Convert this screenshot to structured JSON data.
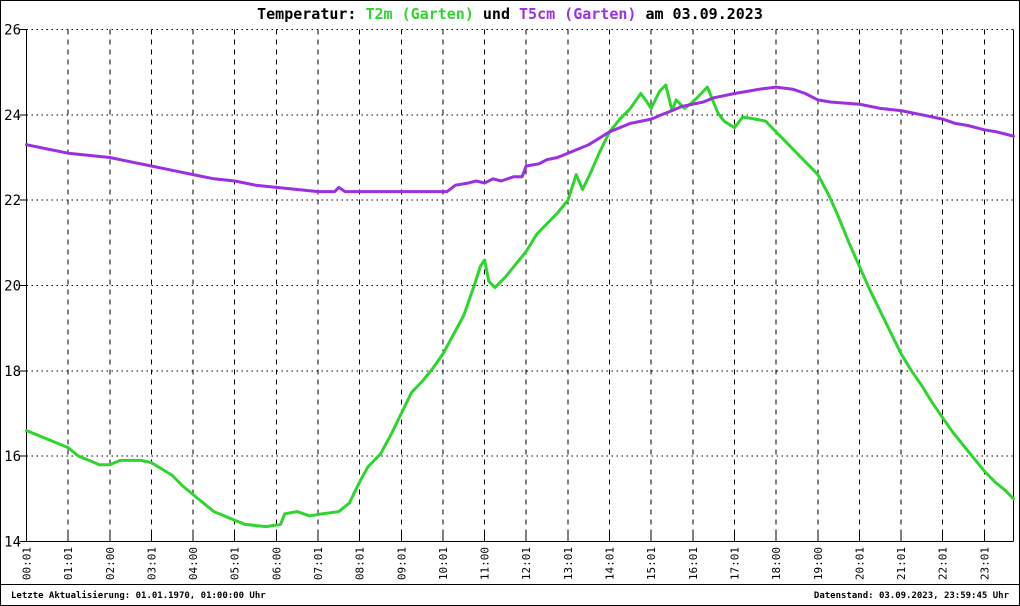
{
  "title": {
    "segments": [
      {
        "text": "Temperatur: ",
        "color_key": "black"
      },
      {
        "text": "T2m (Garten)",
        "color_key": "green"
      },
      {
        "text": " und ",
        "color_key": "black"
      },
      {
        "text": "T5cm (Garten)",
        "color_key": "purple"
      },
      {
        "text": " am 03.09.2023",
        "color_key": "black"
      }
    ],
    "full": "Temperatur: T2m (Garten) und T5cm (Garten) am 03.09.2023"
  },
  "footer": {
    "left": "Letzte Aktualisierung: 01.01.1970, 01:00:00 Uhr",
    "right": "Datenstand: 03.09.2023, 23:59:45 Uhr"
  },
  "colors": {
    "t2m_line": "#2ed52e",
    "t5cm_line": "#9b30e0",
    "axis": "#000000",
    "background": "#ffffff"
  },
  "chart_data": {
    "type": "line",
    "title": "Temperatur: T2m (Garten) und T5cm (Garten) am 03.09.2023",
    "xlabel": "",
    "ylabel": "",
    "ylim": [
      14,
      26
    ],
    "y_ticks": [
      14,
      16,
      18,
      20,
      22,
      24,
      26
    ],
    "xmax_hours": 23.7,
    "grid": "horizontal dotted, vertical dashed",
    "legend_position": "in title (colored text)",
    "x_tick_labels": [
      "00:01",
      "01:01",
      "02:00",
      "03:01",
      "04:00",
      "05:01",
      "06:00",
      "07:01",
      "08:01",
      "09:01",
      "10:01",
      "11:00",
      "12:01",
      "13:01",
      "14:01",
      "15:01",
      "16:01",
      "17:01",
      "18:00",
      "19:00",
      "20:01",
      "21:01",
      "22:01",
      "23:01"
    ],
    "series": [
      {
        "name": "T2m (Garten)",
        "color": "#2ed52e",
        "points": [
          [
            0,
            16.6
          ],
          [
            0.25,
            16.5
          ],
          [
            0.5,
            16.4
          ],
          [
            0.75,
            16.3
          ],
          [
            1,
            16.2
          ],
          [
            1.25,
            16.0
          ],
          [
            1.5,
            15.9
          ],
          [
            1.75,
            15.8
          ],
          [
            2,
            15.8
          ],
          [
            2.25,
            15.9
          ],
          [
            2.75,
            15.9
          ],
          [
            3,
            15.85
          ],
          [
            3.25,
            15.7
          ],
          [
            3.5,
            15.55
          ],
          [
            3.75,
            15.3
          ],
          [
            4,
            15.1
          ],
          [
            4.25,
            14.9
          ],
          [
            4.5,
            14.7
          ],
          [
            4.75,
            14.6
          ],
          [
            5,
            14.5
          ],
          [
            5.25,
            14.4
          ],
          [
            5.75,
            14.35
          ],
          [
            6.1,
            14.4
          ],
          [
            6.2,
            14.65
          ],
          [
            6.5,
            14.7
          ],
          [
            6.8,
            14.6
          ],
          [
            7.1,
            14.65
          ],
          [
            7.5,
            14.7
          ],
          [
            7.75,
            14.9
          ],
          [
            8,
            15.4
          ],
          [
            8.2,
            15.75
          ],
          [
            8.5,
            16.05
          ],
          [
            8.75,
            16.5
          ],
          [
            9,
            17.0
          ],
          [
            9.25,
            17.5
          ],
          [
            9.5,
            17.75
          ],
          [
            9.75,
            18.05
          ],
          [
            10,
            18.4
          ],
          [
            10.25,
            18.85
          ],
          [
            10.5,
            19.3
          ],
          [
            10.75,
            20.0
          ],
          [
            10.9,
            20.45
          ],
          [
            11,
            20.6
          ],
          [
            11.1,
            20.1
          ],
          [
            11.25,
            19.95
          ],
          [
            11.5,
            20.2
          ],
          [
            11.75,
            20.5
          ],
          [
            12,
            20.8
          ],
          [
            12.25,
            21.2
          ],
          [
            12.5,
            21.45
          ],
          [
            12.75,
            21.7
          ],
          [
            13,
            22.0
          ],
          [
            13.2,
            22.6
          ],
          [
            13.35,
            22.25
          ],
          [
            13.55,
            22.65
          ],
          [
            13.75,
            23.1
          ],
          [
            14,
            23.6
          ],
          [
            14.25,
            23.9
          ],
          [
            14.5,
            24.15
          ],
          [
            14.75,
            24.5
          ],
          [
            14.9,
            24.3
          ],
          [
            15,
            24.15
          ],
          [
            15.2,
            24.55
          ],
          [
            15.35,
            24.7
          ],
          [
            15.5,
            24.1
          ],
          [
            15.6,
            24.35
          ],
          [
            15.8,
            24.15
          ],
          [
            16,
            24.3
          ],
          [
            16.2,
            24.5
          ],
          [
            16.35,
            24.65
          ],
          [
            16.6,
            24.05
          ],
          [
            16.75,
            23.85
          ],
          [
            17,
            23.7
          ],
          [
            17.2,
            23.95
          ],
          [
            17.5,
            23.9
          ],
          [
            17.75,
            23.85
          ],
          [
            18,
            23.6
          ],
          [
            18.25,
            23.35
          ],
          [
            18.5,
            23.1
          ],
          [
            18.75,
            22.85
          ],
          [
            19,
            22.6
          ],
          [
            19.25,
            22.15
          ],
          [
            19.5,
            21.6
          ],
          [
            19.75,
            21.0
          ],
          [
            20,
            20.45
          ],
          [
            20.25,
            19.9
          ],
          [
            20.5,
            19.4
          ],
          [
            20.75,
            18.9
          ],
          [
            21,
            18.4
          ],
          [
            21.25,
            18.0
          ],
          [
            21.5,
            17.65
          ],
          [
            21.75,
            17.25
          ],
          [
            22,
            16.9
          ],
          [
            22.25,
            16.55
          ],
          [
            22.5,
            16.25
          ],
          [
            22.75,
            15.95
          ],
          [
            23,
            15.65
          ],
          [
            23.25,
            15.4
          ],
          [
            23.5,
            15.2
          ],
          [
            23.7,
            15.0
          ]
        ]
      },
      {
        "name": "T5cm (Garten)",
        "color": "#9b30e0",
        "points": [
          [
            0,
            23.3
          ],
          [
            0.5,
            23.2
          ],
          [
            1,
            23.1
          ],
          [
            1.5,
            23.05
          ],
          [
            2,
            23.0
          ],
          [
            2.5,
            22.9
          ],
          [
            3,
            22.8
          ],
          [
            3.5,
            22.7
          ],
          [
            4,
            22.6
          ],
          [
            4.5,
            22.5
          ],
          [
            5,
            22.45
          ],
          [
            5.5,
            22.35
          ],
          [
            6,
            22.3
          ],
          [
            6.5,
            22.25
          ],
          [
            7,
            22.2
          ],
          [
            7.4,
            22.2
          ],
          [
            7.5,
            22.3
          ],
          [
            7.65,
            22.2
          ],
          [
            10.1,
            22.2
          ],
          [
            10.3,
            22.35
          ],
          [
            10.6,
            22.4
          ],
          [
            10.8,
            22.45
          ],
          [
            11,
            22.4
          ],
          [
            11.2,
            22.5
          ],
          [
            11.4,
            22.45
          ],
          [
            11.7,
            22.55
          ],
          [
            11.9,
            22.55
          ],
          [
            12,
            22.8
          ],
          [
            12.3,
            22.85
          ],
          [
            12.5,
            22.95
          ],
          [
            12.75,
            23.0
          ],
          [
            13,
            23.1
          ],
          [
            13.25,
            23.2
          ],
          [
            13.5,
            23.3
          ],
          [
            13.75,
            23.45
          ],
          [
            14,
            23.6
          ],
          [
            14.25,
            23.7
          ],
          [
            14.5,
            23.8
          ],
          [
            15,
            23.9
          ],
          [
            15.25,
            24.0
          ],
          [
            15.5,
            24.1
          ],
          [
            15.75,
            24.2
          ],
          [
            16,
            24.25
          ],
          [
            16.25,
            24.3
          ],
          [
            16.5,
            24.4
          ],
          [
            17,
            24.5
          ],
          [
            17.3,
            24.55
          ],
          [
            17.6,
            24.6
          ],
          [
            18,
            24.65
          ],
          [
            18.4,
            24.6
          ],
          [
            18.7,
            24.5
          ],
          [
            19,
            24.35
          ],
          [
            19.3,
            24.3
          ],
          [
            20,
            24.25
          ],
          [
            20.5,
            24.15
          ],
          [
            21,
            24.1
          ],
          [
            21.5,
            24.0
          ],
          [
            22,
            23.9
          ],
          [
            22.3,
            23.8
          ],
          [
            22.6,
            23.75
          ],
          [
            23,
            23.65
          ],
          [
            23.3,
            23.6
          ],
          [
            23.5,
            23.55
          ],
          [
            23.7,
            23.5
          ]
        ]
      }
    ]
  }
}
